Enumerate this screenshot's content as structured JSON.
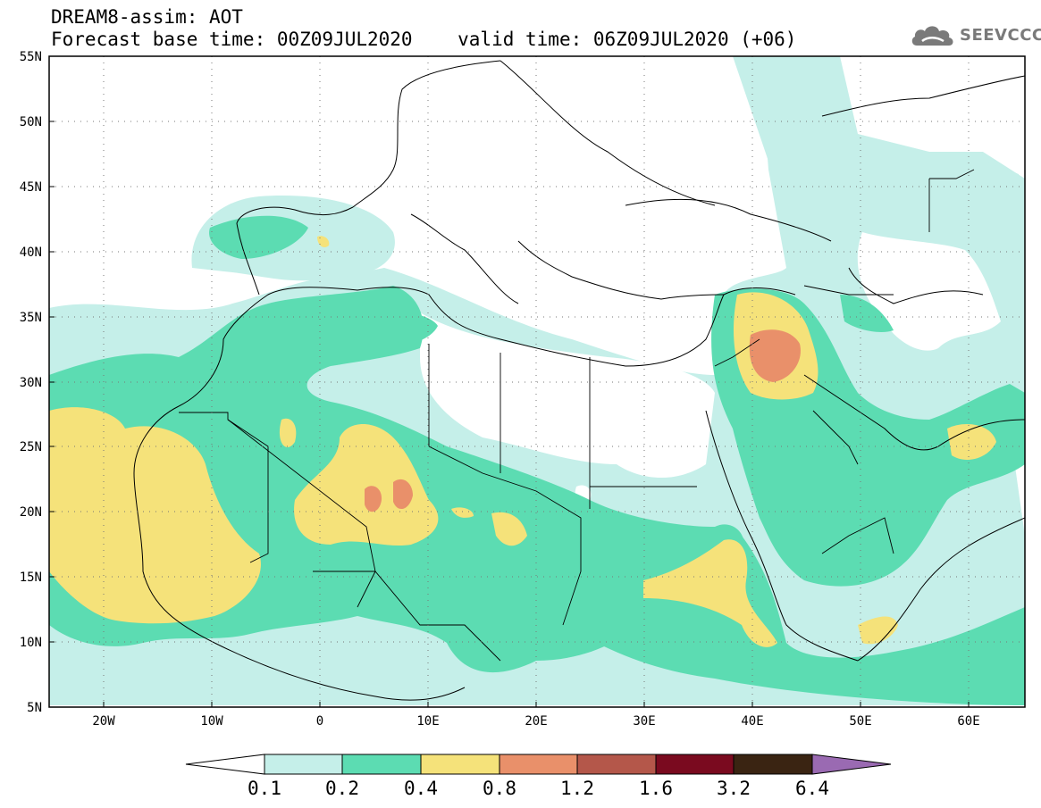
{
  "title": {
    "line1": "DREAM8-assim: AOT",
    "line2": "Forecast base time: 00Z09JUL2020    valid time: 06Z09JUL2020 (+06)"
  },
  "logo": {
    "text": "SEEVCCC",
    "icon": "cloud-icon"
  },
  "map": {
    "lon_range": [
      -25,
      65
    ],
    "lat_range": [
      5,
      55
    ],
    "lat_labels": [
      "55N",
      "50N",
      "45N",
      "40N",
      "35N",
      "30N",
      "25N",
      "20N",
      "15N",
      "10N",
      "5N"
    ],
    "lon_labels": [
      "20W",
      "10W",
      "0",
      "10E",
      "20E",
      "30E",
      "40E",
      "50E",
      "60E"
    ],
    "grid": "dotted"
  },
  "colorbar": {
    "labels": [
      "0.1",
      "0.2",
      "0.4",
      "0.8",
      "1.2",
      "1.6",
      "3.2",
      "6.4"
    ],
    "colors": [
      "#ffffff",
      "#c5efe9",
      "#5cdcb2",
      "#f5e27a",
      "#e9906a",
      "#b4574a",
      "#7a0a1f",
      "#3a2412",
      "#9a6ab2"
    ]
  }
}
